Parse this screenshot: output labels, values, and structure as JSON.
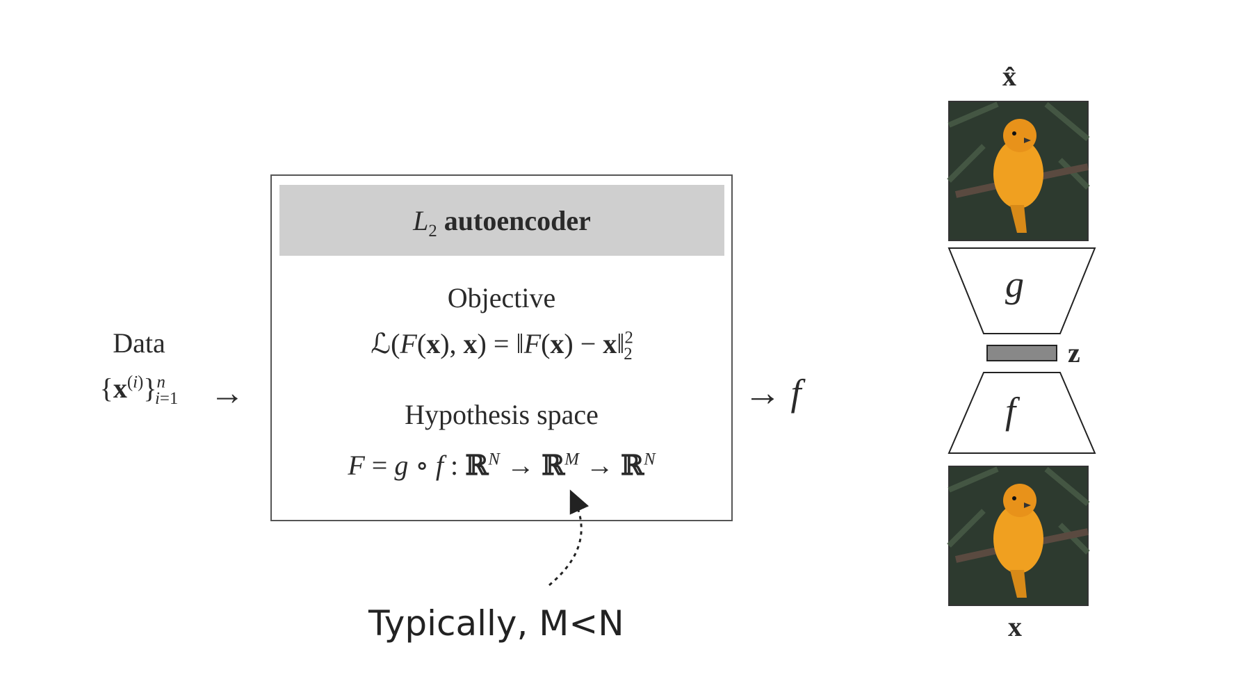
{
  "data": {
    "title": "Data",
    "sample_set": "{x^(i)}_{i=1}^n"
  },
  "box": {
    "title": "L₂ autoencoder",
    "objective_label": "Objective",
    "objective_formula": "ℒ(F(x), x) = ‖F(x) − x‖₂²",
    "hypothesis_label": "Hypothesis space",
    "hypothesis_formula": "F = g ∘ f : ℝᴺ → ℝᴹ → ℝᴺ"
  },
  "output": "→ f",
  "note": "Typically, M<N",
  "network": {
    "output_label": "x̂",
    "decoder": "g",
    "code": "z",
    "encoder": "f",
    "input_label": "x",
    "image_subject": "orange bird on a branch"
  },
  "colors": {
    "title_bar": "#cfcfcf",
    "code_bar": "#888888",
    "bird": "#f0a020",
    "foliage": "#2d3a2f"
  }
}
